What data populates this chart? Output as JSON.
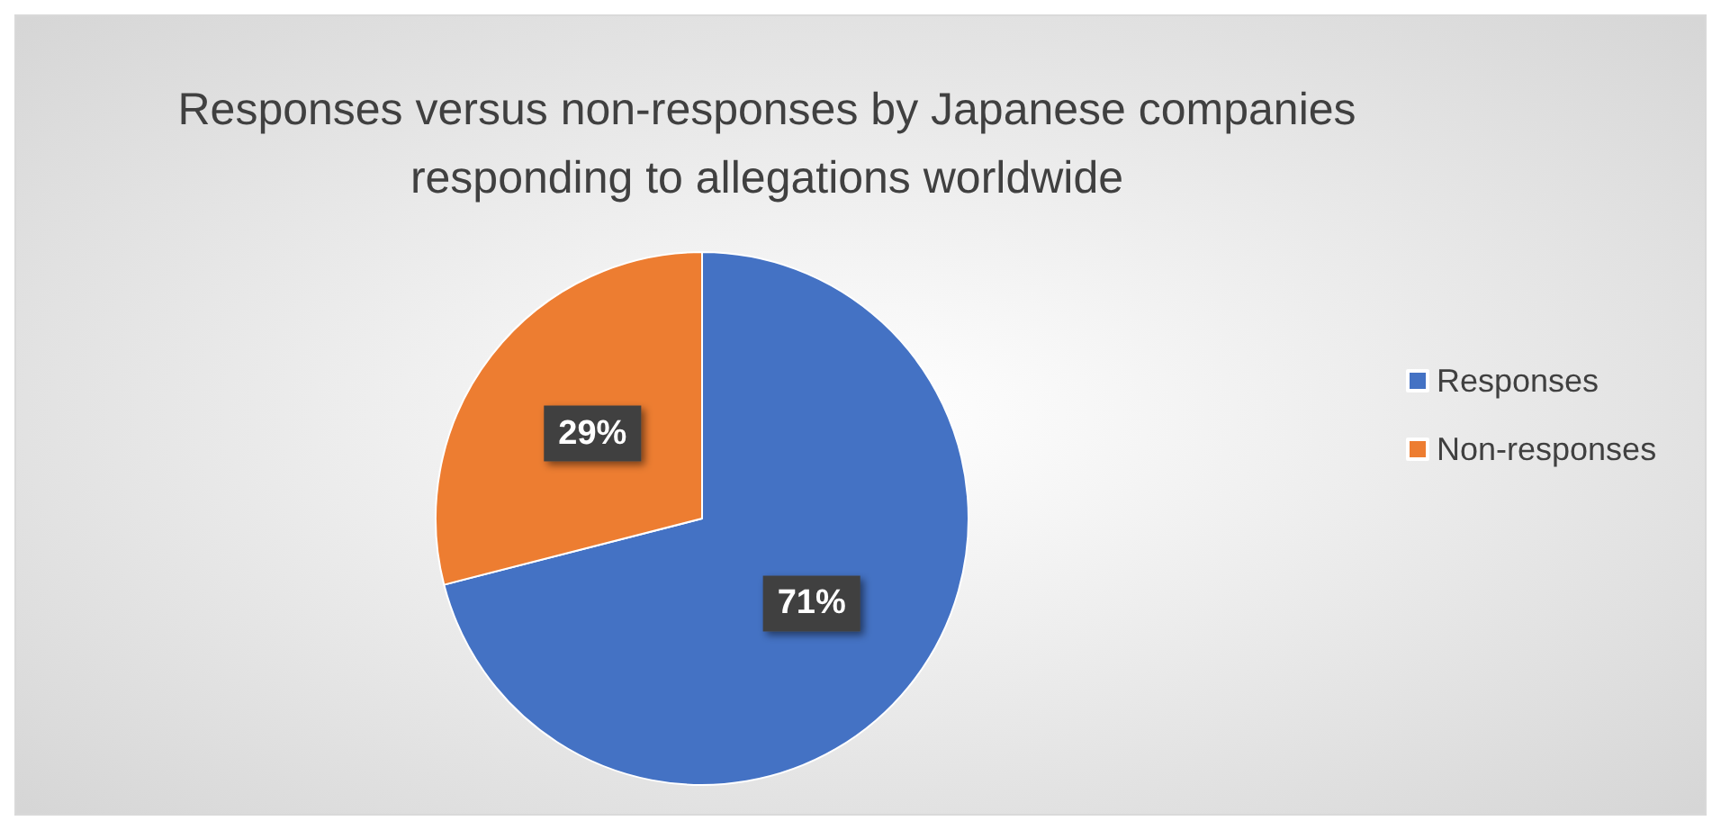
{
  "chart_data": {
    "type": "pie",
    "title": "Responses versus non-responses by Japanese companies\nresponding to allegations worldwide",
    "categories": [
      "Responses",
      "Non-responses"
    ],
    "values": [
      71,
      29
    ],
    "colors": [
      "#4472c4",
      "#ed7d31"
    ],
    "value_labels": [
      "71%",
      "29%"
    ],
    "legend": "right"
  }
}
